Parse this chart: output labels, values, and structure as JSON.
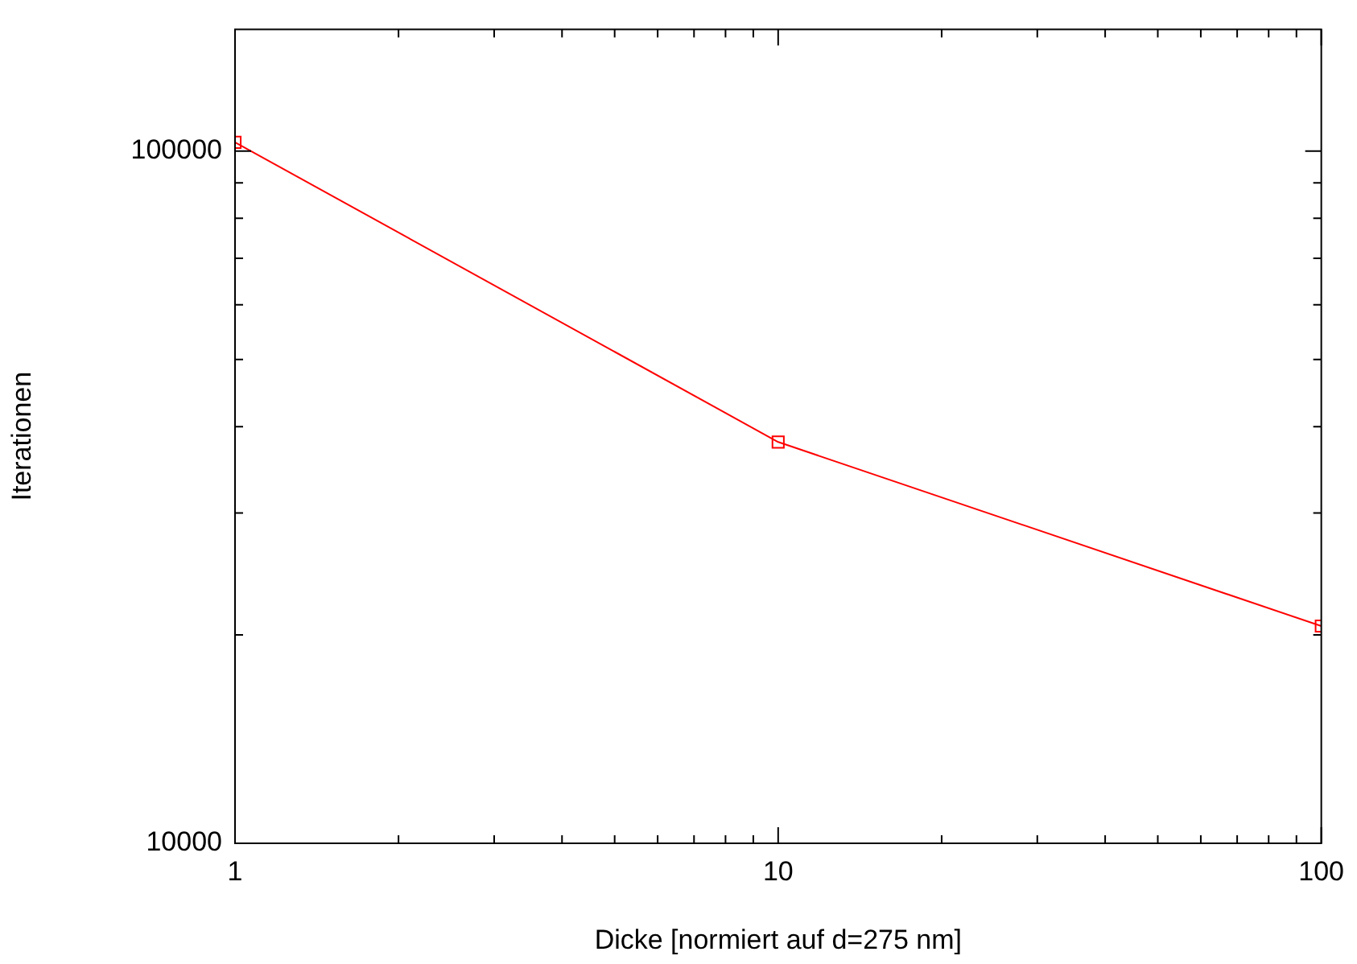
{
  "chart_data": {
    "type": "line",
    "xlabel": "Dicke [normiert auf d=275 nm]",
    "ylabel": "Iterationen",
    "log": "xy",
    "grid": false,
    "legend": false,
    "marker": "square",
    "line_style": "solid",
    "x": [
      1,
      10,
      100
    ],
    "series": [
      {
        "color": "#ff0000",
        "values": [
          103000,
          38000,
          20600
        ]
      }
    ],
    "xlim": [
      1,
      100
    ],
    "ylim": [
      10000,
      150000
    ],
    "xticks": [
      1,
      {
        "value": 2,
        "label": null
      },
      {
        "value": 3,
        "label": null
      },
      {
        "value": 4,
        "label": null
      },
      {
        "value": 5,
        "label": null
      },
      {
        "value": 6,
        "label": null
      },
      {
        "value": 7,
        "label": null
      },
      {
        "value": 8,
        "label": null
      },
      {
        "value": 9,
        "label": null
      },
      10,
      {
        "value": 20,
        "label": null
      },
      {
        "value": 30,
        "label": null
      },
      {
        "value": 40,
        "label": null
      },
      {
        "value": 50,
        "label": null
      },
      {
        "value": 60,
        "label": null
      },
      {
        "value": 70,
        "label": null
      },
      {
        "value": 80,
        "label": null
      },
      {
        "value": 90,
        "label": null
      },
      100
    ],
    "yticks": [
      10000,
      {
        "value": 20000,
        "label": null
      },
      {
        "value": 30000,
        "label": null
      },
      {
        "value": 40000,
        "label": null
      },
      {
        "value": 50000,
        "label": null
      },
      {
        "value": 60000,
        "label": null
      },
      {
        "value": 70000,
        "label": null
      },
      {
        "value": 80000,
        "label": null
      },
      {
        "value": 90000,
        "label": null
      },
      100000
    ]
  }
}
